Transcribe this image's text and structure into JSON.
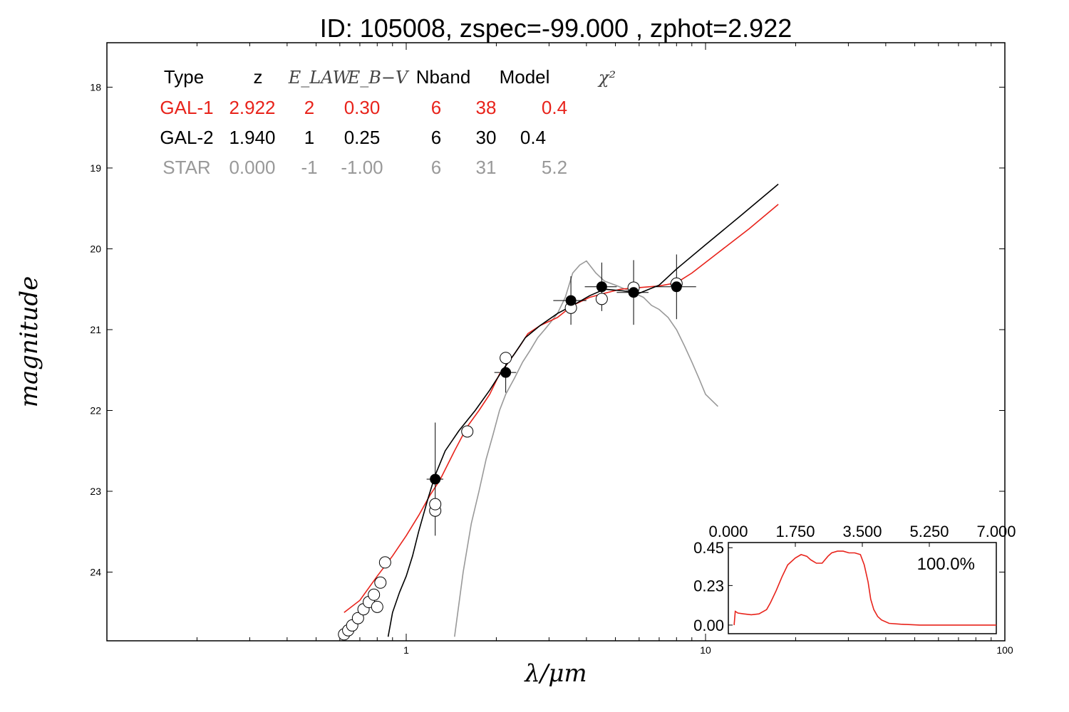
{
  "chart_data": [
    {
      "type": "line",
      "title": "ID:  105008, zspec=-99.000 , zphot=2.922",
      "xlabel": "λ/μm",
      "ylabel": "magnitude",
      "xscale": "log",
      "xlim": [
        0.1,
        100
      ],
      "ylim": [
        24.85,
        17.45
      ],
      "x_ticks": [
        1,
        10,
        100
      ],
      "x_tick_labels": [
        "1",
        "10",
        "100"
      ],
      "y_ticks": [
        18,
        19,
        20,
        21,
        22,
        23,
        24
      ],
      "y_tick_labels": [
        "18",
        "19",
        "20",
        "21",
        "22",
        "23",
        "24"
      ],
      "grid": false,
      "fit_table": {
        "headers": [
          "Type",
          "z",
          "E_LAW",
          "E_B−V",
          "Nband",
          "Model",
          "χ²"
        ],
        "rows": [
          {
            "type": "GAL-1",
            "z": "2.922",
            "elaw": "2",
            "ebv": "0.30",
            "nband": "6",
            "model": "38",
            "chi2": "0.4",
            "color": "#e8231b"
          },
          {
            "type": "GAL-2",
            "z": "1.940",
            "elaw": "1",
            "ebv": "0.25",
            "nband": "6",
            "model": "30",
            "chi2": "0.4",
            "color": "#000000"
          },
          {
            "type": "STAR",
            "z": "0.000",
            "elaw": "-1",
            "ebv": "-1.00",
            "nband": "6",
            "model": "31",
            "chi2": "5.2",
            "color": "#999999"
          }
        ]
      },
      "series": [
        {
          "color": "#e8231b",
          "x": [
            0.62,
            0.7,
            0.8,
            0.9,
            1.0,
            1.1,
            1.2,
            1.3,
            1.45,
            1.6,
            1.75,
            1.9,
            2.05,
            2.2,
            2.4,
            2.55,
            2.8,
            3.2,
            3.6,
            4.1,
            4.6,
            5.2,
            6.0,
            7.0,
            8.0,
            9.0,
            11.0,
            14.0,
            17.5
          ],
          "y": [
            24.5,
            24.35,
            24.05,
            23.8,
            23.55,
            23.3,
            23.05,
            22.85,
            22.5,
            22.2,
            22.0,
            21.8,
            21.55,
            21.4,
            21.2,
            21.05,
            20.95,
            20.85,
            20.7,
            20.6,
            20.55,
            20.5,
            20.48,
            20.46,
            20.42,
            20.3,
            20.05,
            19.75,
            19.45
          ]
        },
        {
          "color": "#000000",
          "x": [
            0.87,
            0.9,
            0.95,
            1.0,
            1.05,
            1.1,
            1.18,
            1.25,
            1.35,
            1.5,
            1.7,
            1.9,
            2.1,
            2.3,
            2.5,
            2.8,
            3.2,
            3.6,
            4.1,
            4.6,
            5.3,
            6.0,
            7.0,
            8.0,
            10.0,
            13.0,
            17.5
          ],
          "y": [
            24.8,
            24.5,
            24.25,
            24.05,
            23.8,
            23.5,
            23.1,
            22.8,
            22.5,
            22.25,
            22.0,
            21.75,
            21.5,
            21.3,
            21.1,
            20.95,
            20.8,
            20.7,
            20.58,
            20.5,
            20.52,
            20.55,
            20.45,
            20.25,
            19.95,
            19.6,
            19.2
          ]
        },
        {
          "color": "#999999",
          "x": [
            1.45,
            1.55,
            1.65,
            1.75,
            1.85,
            1.95,
            2.05,
            2.15,
            2.3,
            2.45,
            2.6,
            2.75,
            2.9,
            3.05,
            3.2,
            3.4,
            3.6,
            3.8,
            4.0,
            4.3,
            4.6,
            5.0,
            5.4,
            5.8,
            6.2,
            6.6,
            7.0,
            7.5,
            8.0,
            8.5,
            9.0,
            9.5,
            10.0,
            11.0
          ],
          "y": [
            24.8,
            24.0,
            23.4,
            23.0,
            22.6,
            22.3,
            22.0,
            21.8,
            21.6,
            21.4,
            21.25,
            21.1,
            21.0,
            20.9,
            20.8,
            20.6,
            20.3,
            20.2,
            20.15,
            20.3,
            20.4,
            20.45,
            20.5,
            20.55,
            20.6,
            20.7,
            20.75,
            20.85,
            21.0,
            21.2,
            21.4,
            21.6,
            21.8,
            21.95
          ]
        }
      ],
      "points": {
        "observed_filled": [
          {
            "x": 1.25,
            "y": 22.85,
            "yerr": 0.7,
            "xerr": 0.08
          },
          {
            "x": 2.15,
            "y": 21.53,
            "yerr": 0.25,
            "xerr": 0.18
          },
          {
            "x": 3.55,
            "y": 20.64,
            "yerr": 0.3,
            "xerr": 0.45
          },
          {
            "x": 4.5,
            "y": 20.47,
            "yerr": 0.3,
            "xerr": 0.55
          },
          {
            "x": 5.75,
            "y": 20.54,
            "yerr": 0.4,
            "xerr": 0.7
          },
          {
            "x": 8.0,
            "y": 20.47,
            "yerr": 0.4,
            "xerr": 1.3
          }
        ],
        "model_open": [
          {
            "x": 0.62,
            "y": 24.77
          },
          {
            "x": 0.64,
            "y": 24.72
          },
          {
            "x": 0.66,
            "y": 24.66
          },
          {
            "x": 0.69,
            "y": 24.57
          },
          {
            "x": 0.72,
            "y": 24.46
          },
          {
            "x": 0.75,
            "y": 24.37
          },
          {
            "x": 0.78,
            "y": 24.28
          },
          {
            "x": 0.82,
            "y": 24.13
          },
          {
            "x": 0.85,
            "y": 23.88
          },
          {
            "x": 0.8,
            "y": 24.43
          },
          {
            "x": 1.25,
            "y": 23.24
          },
          {
            "x": 1.25,
            "y": 23.16
          },
          {
            "x": 1.6,
            "y": 22.26
          },
          {
            "x": 2.15,
            "y": 21.35
          },
          {
            "x": 3.55,
            "y": 20.73
          },
          {
            "x": 4.5,
            "y": 20.62
          },
          {
            "x": 5.75,
            "y": 20.48
          },
          {
            "x": 8.0,
            "y": 20.43
          }
        ]
      }
    },
    {
      "type": "line",
      "title": "",
      "annotation": "100.0%",
      "xlim": [
        0,
        7
      ],
      "ylim": [
        -0.05,
        0.48
      ],
      "x_ticks": [
        0.0,
        1.75,
        3.5,
        5.25,
        7.0
      ],
      "x_tick_labels": [
        "0.000",
        "1.750",
        "3.500",
        "5.250",
        "7.000"
      ],
      "y_ticks": [
        0.0,
        0.23,
        0.45
      ],
      "y_tick_labels": [
        "0.00",
        "0.23",
        "0.45"
      ],
      "x_axis_position": "top",
      "series": [
        {
          "color": "#e8231b",
          "x": [
            0.15,
            0.18,
            0.25,
            0.4,
            0.6,
            0.8,
            1.0,
            1.1,
            1.25,
            1.4,
            1.55,
            1.75,
            1.9,
            2.05,
            2.15,
            2.3,
            2.45,
            2.6,
            2.7,
            2.85,
            3.0,
            3.15,
            3.3,
            3.45,
            3.55,
            3.65,
            3.72,
            3.8,
            3.9,
            4.0,
            4.2,
            4.5,
            5.0,
            6.0,
            7.0
          ],
          "y": [
            0.0,
            0.08,
            0.07,
            0.065,
            0.06,
            0.065,
            0.09,
            0.13,
            0.2,
            0.28,
            0.35,
            0.39,
            0.41,
            0.4,
            0.38,
            0.36,
            0.36,
            0.4,
            0.42,
            0.43,
            0.43,
            0.42,
            0.42,
            0.41,
            0.35,
            0.25,
            0.15,
            0.09,
            0.05,
            0.03,
            0.01,
            0.005,
            0.0,
            0.0,
            0.0
          ]
        }
      ]
    }
  ]
}
